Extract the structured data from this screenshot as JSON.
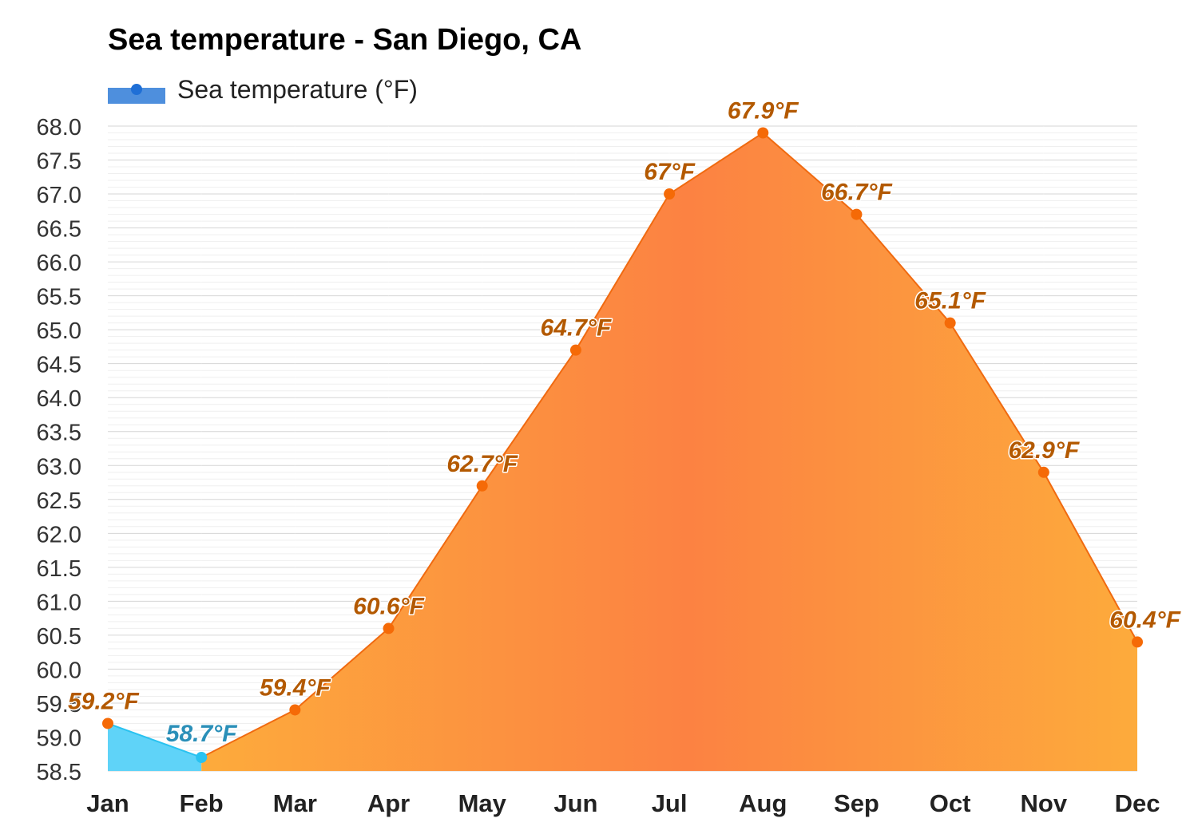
{
  "chart_data": {
    "type": "area",
    "title": "Sea temperature - San Diego, CA",
    "legend": {
      "label": "Sea temperature (°F)",
      "placement": "top-left"
    },
    "categories": [
      "Jan",
      "Feb",
      "Mar",
      "Apr",
      "May",
      "Jun",
      "Jul",
      "Aug",
      "Sep",
      "Oct",
      "Nov",
      "Dec"
    ],
    "series": [
      {
        "name": "Sea temperature (°F)",
        "values": [
          59.2,
          58.7,
          59.4,
          60.6,
          62.7,
          64.7,
          67.0,
          67.9,
          66.7,
          65.1,
          62.9,
          60.4
        ],
        "labels": [
          "59.2°F",
          "58.7°F",
          "59.4°F",
          "60.6°F",
          "62.7°F",
          "64.7°F",
          "67°F",
          "67.9°F",
          "66.7°F",
          "65.1°F",
          "62.9°F",
          "60.4°F"
        ]
      }
    ],
    "ylim": [
      58.5,
      68.0
    ],
    "yticks": [
      "68.0",
      "67.5",
      "67.0",
      "66.5",
      "66.0",
      "65.5",
      "65.0",
      "64.5",
      "64.0",
      "63.5",
      "63.0",
      "62.5",
      "62.0",
      "61.5",
      "61.0",
      "60.5",
      "60.0",
      "59.5",
      "59.0",
      "58.5"
    ],
    "xlabel": "",
    "ylabel": "",
    "grid": true,
    "colors": {
      "cold_fill": "#5fd3f8",
      "cold_point": "#29c2f0",
      "cold_label": "#2a8fb8",
      "warm_light": "#fdab3c",
      "warm_dark": "#fc8242",
      "warm_line": "#f06a10",
      "warm_point": "#f56a07",
      "warm_label": "#b35900",
      "legend_fill": "#4e8fdd",
      "legend_point": "#1f6fd6"
    }
  }
}
